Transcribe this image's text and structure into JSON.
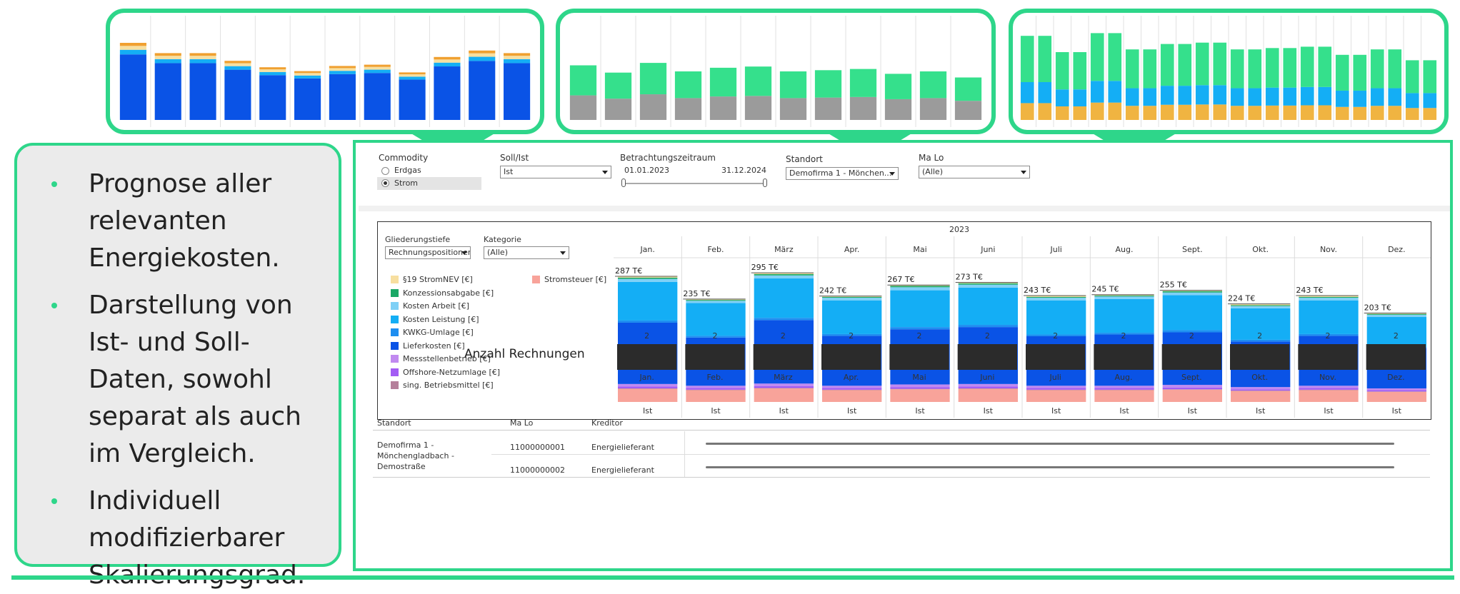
{
  "bullets": [
    "Prognose aller relevanten Energiekosten.",
    "Darstellung von Ist- und Soll-Daten, sowohl separat als auch im Vergleich.",
    "Individuell modifizierbarer Skalierungsgrad."
  ],
  "filters": {
    "commodity_label": "Commodity",
    "commodity_options": [
      "Erdgas",
      "Strom"
    ],
    "commodity_selected": "Strom",
    "soll_ist_label": "Soll/Ist",
    "soll_ist_value": "Ist",
    "zeitraum_label": "Betrachtungszeitraum",
    "zeitraum_start": "01.01.2023",
    "zeitraum_end": "31.12.2024",
    "standort_label": "Standort",
    "standort_value": "Demofirma 1 - Mönchen...",
    "malo_label": "Ma Lo",
    "malo_value": "(Alle)"
  },
  "chart_panel": {
    "gliederung_label": "Gliederungstiefe",
    "gliederung_value": "Rechnungspositionen",
    "kategorie_label": "Kategorie",
    "kategorie_value": "(Alle)",
    "year_label": "2023",
    "bar_label": "Ist"
  },
  "colors": {
    "accent": "#2ed68a",
    "stromnev": "#f7dfa0",
    "konzession": "#1aa866",
    "arbeit": "#7fd0f6",
    "leistung": "#14aef5",
    "kwkg": "#1e8ef0",
    "liefer": "#0a53e6",
    "messstelle": "#c18af0",
    "offshore": "#a35cf4",
    "betrieb": "#b57f9a",
    "stromsteuer": "#f8a39a",
    "count_bar": "#2b2b2b"
  },
  "chart_data": {
    "type": "bar",
    "title": "2023",
    "categories": [
      "Jan.",
      "Feb.",
      "März",
      "Apr.",
      "Mai",
      "Juni",
      "Juli",
      "Aug.",
      "Sept.",
      "Okt.",
      "Nov.",
      "Dez."
    ],
    "totals_label": [
      "287 T€",
      "235 T€",
      "295 T€",
      "242 T€",
      "267 T€",
      "273 T€",
      "243 T€",
      "245 T€",
      "255 T€",
      "224 T€",
      "243 T€",
      "203 T€"
    ],
    "totals": [
      287,
      235,
      295,
      242,
      267,
      273,
      243,
      245,
      255,
      224,
      243,
      203
    ],
    "series": [
      {
        "name": "Stromsteuer [€]",
        "color_key": "stromsteuer",
        "values": [
          30,
          27,
          31,
          27,
          29,
          30,
          27,
          27,
          28,
          25,
          27,
          23
        ]
      },
      {
        "name": "sing. Betriebsmittel [€]",
        "color_key": "betrieb",
        "values": [
          1,
          1,
          1,
          1,
          1,
          1,
          1,
          1,
          1,
          1,
          1,
          1
        ]
      },
      {
        "name": "Offshore-Netzumlage [€]",
        "color_key": "offshore",
        "values": [
          4,
          4,
          4,
          4,
          4,
          4,
          4,
          4,
          4,
          3,
          4,
          3
        ]
      },
      {
        "name": "Messstellenbetrieb [€]",
        "color_key": "messstelle",
        "values": [
          6,
          5,
          6,
          5,
          6,
          6,
          5,
          5,
          6,
          5,
          5,
          4
        ]
      },
      {
        "name": "Lieferkosten [€]",
        "color_key": "liefer",
        "values": [
          140,
          110,
          145,
          114,
          126,
          130,
          113,
          117,
          120,
          104,
          114,
          92
        ]
      },
      {
        "name": "KWKG-Umlage [€]",
        "color_key": "kwkg",
        "values": [
          5,
          4,
          5,
          4,
          5,
          5,
          4,
          4,
          5,
          4,
          4,
          4
        ]
      },
      {
        "name": "Kosten Leistung [€]",
        "color_key": "leistung",
        "values": [
          88,
          75,
          90,
          77,
          84,
          85,
          78,
          77,
          80,
          72,
          77,
          67
        ]
      },
      {
        "name": "Kosten Arbeit [€]",
        "color_key": "arbeit",
        "values": [
          7,
          5,
          7,
          6,
          7,
          7,
          6,
          6,
          6,
          5,
          6,
          5
        ]
      },
      {
        "name": "Konzessionsabgabe [€]",
        "color_key": "konzession",
        "values": [
          3,
          2,
          3,
          2,
          3,
          3,
          2,
          2,
          3,
          2,
          2,
          2
        ]
      },
      {
        "name": "§19 StromNEV [€]",
        "color_key": "stromnev",
        "values": [
          3,
          2,
          3,
          2,
          2,
          2,
          3,
          2,
          2,
          3,
          3,
          2
        ]
      }
    ],
    "ylim": [
      0,
      300
    ],
    "legend_position": "left"
  },
  "anzahl": {
    "title": "Anzahl Rechnungen",
    "values": [
      2,
      2,
      2,
      2,
      2,
      2,
      2,
      2,
      2,
      2,
      2,
      2
    ],
    "months": [
      "Jan.",
      "Feb.",
      "März",
      "Apr.",
      "Mai",
      "Juni",
      "Juli",
      "Aug.",
      "Sept.",
      "Okt.",
      "Nov.",
      "Dez."
    ]
  },
  "table": {
    "headers": [
      "Standort",
      "Ma Lo",
      "Kreditor"
    ],
    "standort": "Demofirma 1 - Mönchengladbach - Demostraße",
    "rows": [
      {
        "malo": "11000000001",
        "kreditor": "Energielieferant"
      },
      {
        "malo": "11000000002",
        "kreditor": "Energielieferant"
      }
    ]
  }
}
